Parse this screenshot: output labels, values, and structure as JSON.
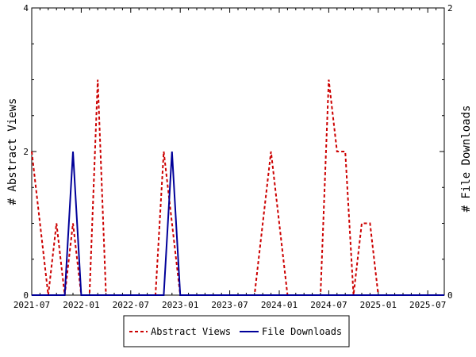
{
  "chart_data": {
    "type": "line",
    "y_left_label": "# Abstract Views",
    "y_right_label": "# File Downloads",
    "y_left_lim": [
      0,
      4
    ],
    "y_right_lim": [
      0,
      2
    ],
    "y_left_ticks": [
      "0",
      "2",
      "4"
    ],
    "y_right_ticks": [
      "0",
      "1",
      "2"
    ],
    "x_tick_labels": [
      "2021-07",
      "2022-01",
      "2022-07",
      "2023-01",
      "2023-07",
      "2024-01",
      "2024-07",
      "2025-01",
      "2025-07"
    ],
    "x_lim": [
      "2021-07",
      "2025-09"
    ],
    "grid": false,
    "legend_position": "bottom",
    "series": [
      {
        "name": "Abstract Views",
        "axis": "left",
        "color": "#cc0000",
        "style": "dashed",
        "points": [
          [
            "2021-07",
            2
          ],
          [
            "2021-08",
            1
          ],
          [
            "2021-09",
            0
          ],
          [
            "2021-10",
            1
          ],
          [
            "2021-11",
            0
          ],
          [
            "2021-12",
            1
          ],
          [
            "2022-01",
            0
          ],
          [
            "2022-02",
            0
          ],
          [
            "2022-03",
            3
          ],
          [
            "2022-04",
            0
          ],
          [
            "2022-05",
            0
          ],
          [
            "2022-06",
            0
          ],
          [
            "2022-07",
            0
          ],
          [
            "2022-08",
            0
          ],
          [
            "2022-09",
            0
          ],
          [
            "2022-10",
            0
          ],
          [
            "2022-11",
            2
          ],
          [
            "2022-12",
            1
          ],
          [
            "2023-01",
            0
          ],
          [
            "2023-02",
            0
          ],
          [
            "2023-03",
            0
          ],
          [
            "2023-04",
            0
          ],
          [
            "2023-05",
            0
          ],
          [
            "2023-06",
            0
          ],
          [
            "2023-07",
            0
          ],
          [
            "2023-08",
            0
          ],
          [
            "2023-09",
            0
          ],
          [
            "2023-10",
            0
          ],
          [
            "2023-11",
            1
          ],
          [
            "2023-12",
            2
          ],
          [
            "2024-01",
            1
          ],
          [
            "2024-02",
            0
          ],
          [
            "2024-03",
            0
          ],
          [
            "2024-04",
            0
          ],
          [
            "2024-05",
            0
          ],
          [
            "2024-06",
            0
          ],
          [
            "2024-07",
            3
          ],
          [
            "2024-08",
            2
          ],
          [
            "2024-09",
            2
          ],
          [
            "2024-10",
            0
          ],
          [
            "2024-11",
            1
          ],
          [
            "2024-12",
            1
          ],
          [
            "2025-01",
            0
          ],
          [
            "2025-02",
            0
          ],
          [
            "2025-03",
            0
          ],
          [
            "2025-04",
            0
          ],
          [
            "2025-05",
            0
          ],
          [
            "2025-06",
            0
          ],
          [
            "2025-07",
            0
          ],
          [
            "2025-08",
            0
          ],
          [
            "2025-09",
            0
          ]
        ]
      },
      {
        "name": "File Downloads",
        "axis": "right",
        "color": "#000099",
        "style": "solid",
        "points": [
          [
            "2021-07",
            0
          ],
          [
            "2021-08",
            0
          ],
          [
            "2021-09",
            0
          ],
          [
            "2021-10",
            0
          ],
          [
            "2021-11",
            0
          ],
          [
            "2021-12",
            1
          ],
          [
            "2022-01",
            0
          ],
          [
            "2022-02",
            0
          ],
          [
            "2022-03",
            0
          ],
          [
            "2022-04",
            0
          ],
          [
            "2022-05",
            0
          ],
          [
            "2022-06",
            0
          ],
          [
            "2022-07",
            0
          ],
          [
            "2022-08",
            0
          ],
          [
            "2022-09",
            0
          ],
          [
            "2022-10",
            0
          ],
          [
            "2022-11",
            0
          ],
          [
            "2022-12",
            1
          ],
          [
            "2023-01",
            0
          ],
          [
            "2023-02",
            0
          ],
          [
            "2023-03",
            0
          ],
          [
            "2023-04",
            0
          ],
          [
            "2023-05",
            0
          ],
          [
            "2023-06",
            0
          ],
          [
            "2023-07",
            0
          ],
          [
            "2023-08",
            0
          ],
          [
            "2023-09",
            0
          ],
          [
            "2023-10",
            0
          ],
          [
            "2023-11",
            0
          ],
          [
            "2023-12",
            0
          ],
          [
            "2024-01",
            0
          ],
          [
            "2024-02",
            0
          ],
          [
            "2024-03",
            0
          ],
          [
            "2024-04",
            0
          ],
          [
            "2024-05",
            0
          ],
          [
            "2024-06",
            0
          ],
          [
            "2024-07",
            0
          ],
          [
            "2024-08",
            0
          ],
          [
            "2024-09",
            0
          ],
          [
            "2024-10",
            0
          ],
          [
            "2024-11",
            0
          ],
          [
            "2024-12",
            0
          ],
          [
            "2025-01",
            0
          ],
          [
            "2025-02",
            0
          ],
          [
            "2025-03",
            0
          ],
          [
            "2025-04",
            0
          ],
          [
            "2025-05",
            0
          ],
          [
            "2025-06",
            0
          ],
          [
            "2025-07",
            0
          ],
          [
            "2025-08",
            0
          ],
          [
            "2025-09",
            0
          ]
        ]
      }
    ]
  }
}
